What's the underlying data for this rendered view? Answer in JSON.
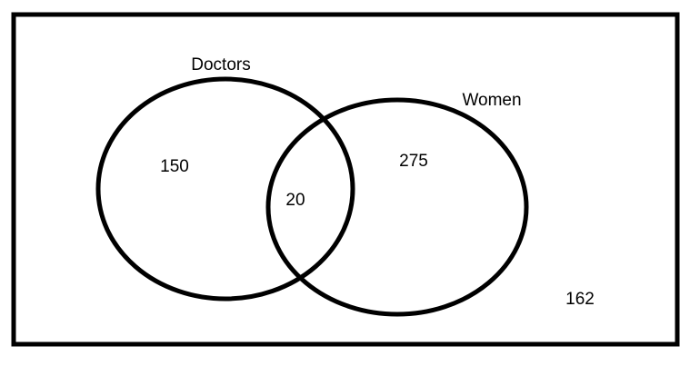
{
  "diagram": {
    "sets": [
      {
        "label": "Doctors"
      },
      {
        "label": "Women"
      }
    ],
    "regions": {
      "doctors_only": "150",
      "both": "20",
      "women_only": "275",
      "neither": "162"
    },
    "colors": {
      "stroke": "#000000",
      "background": "#ffffff"
    }
  }
}
